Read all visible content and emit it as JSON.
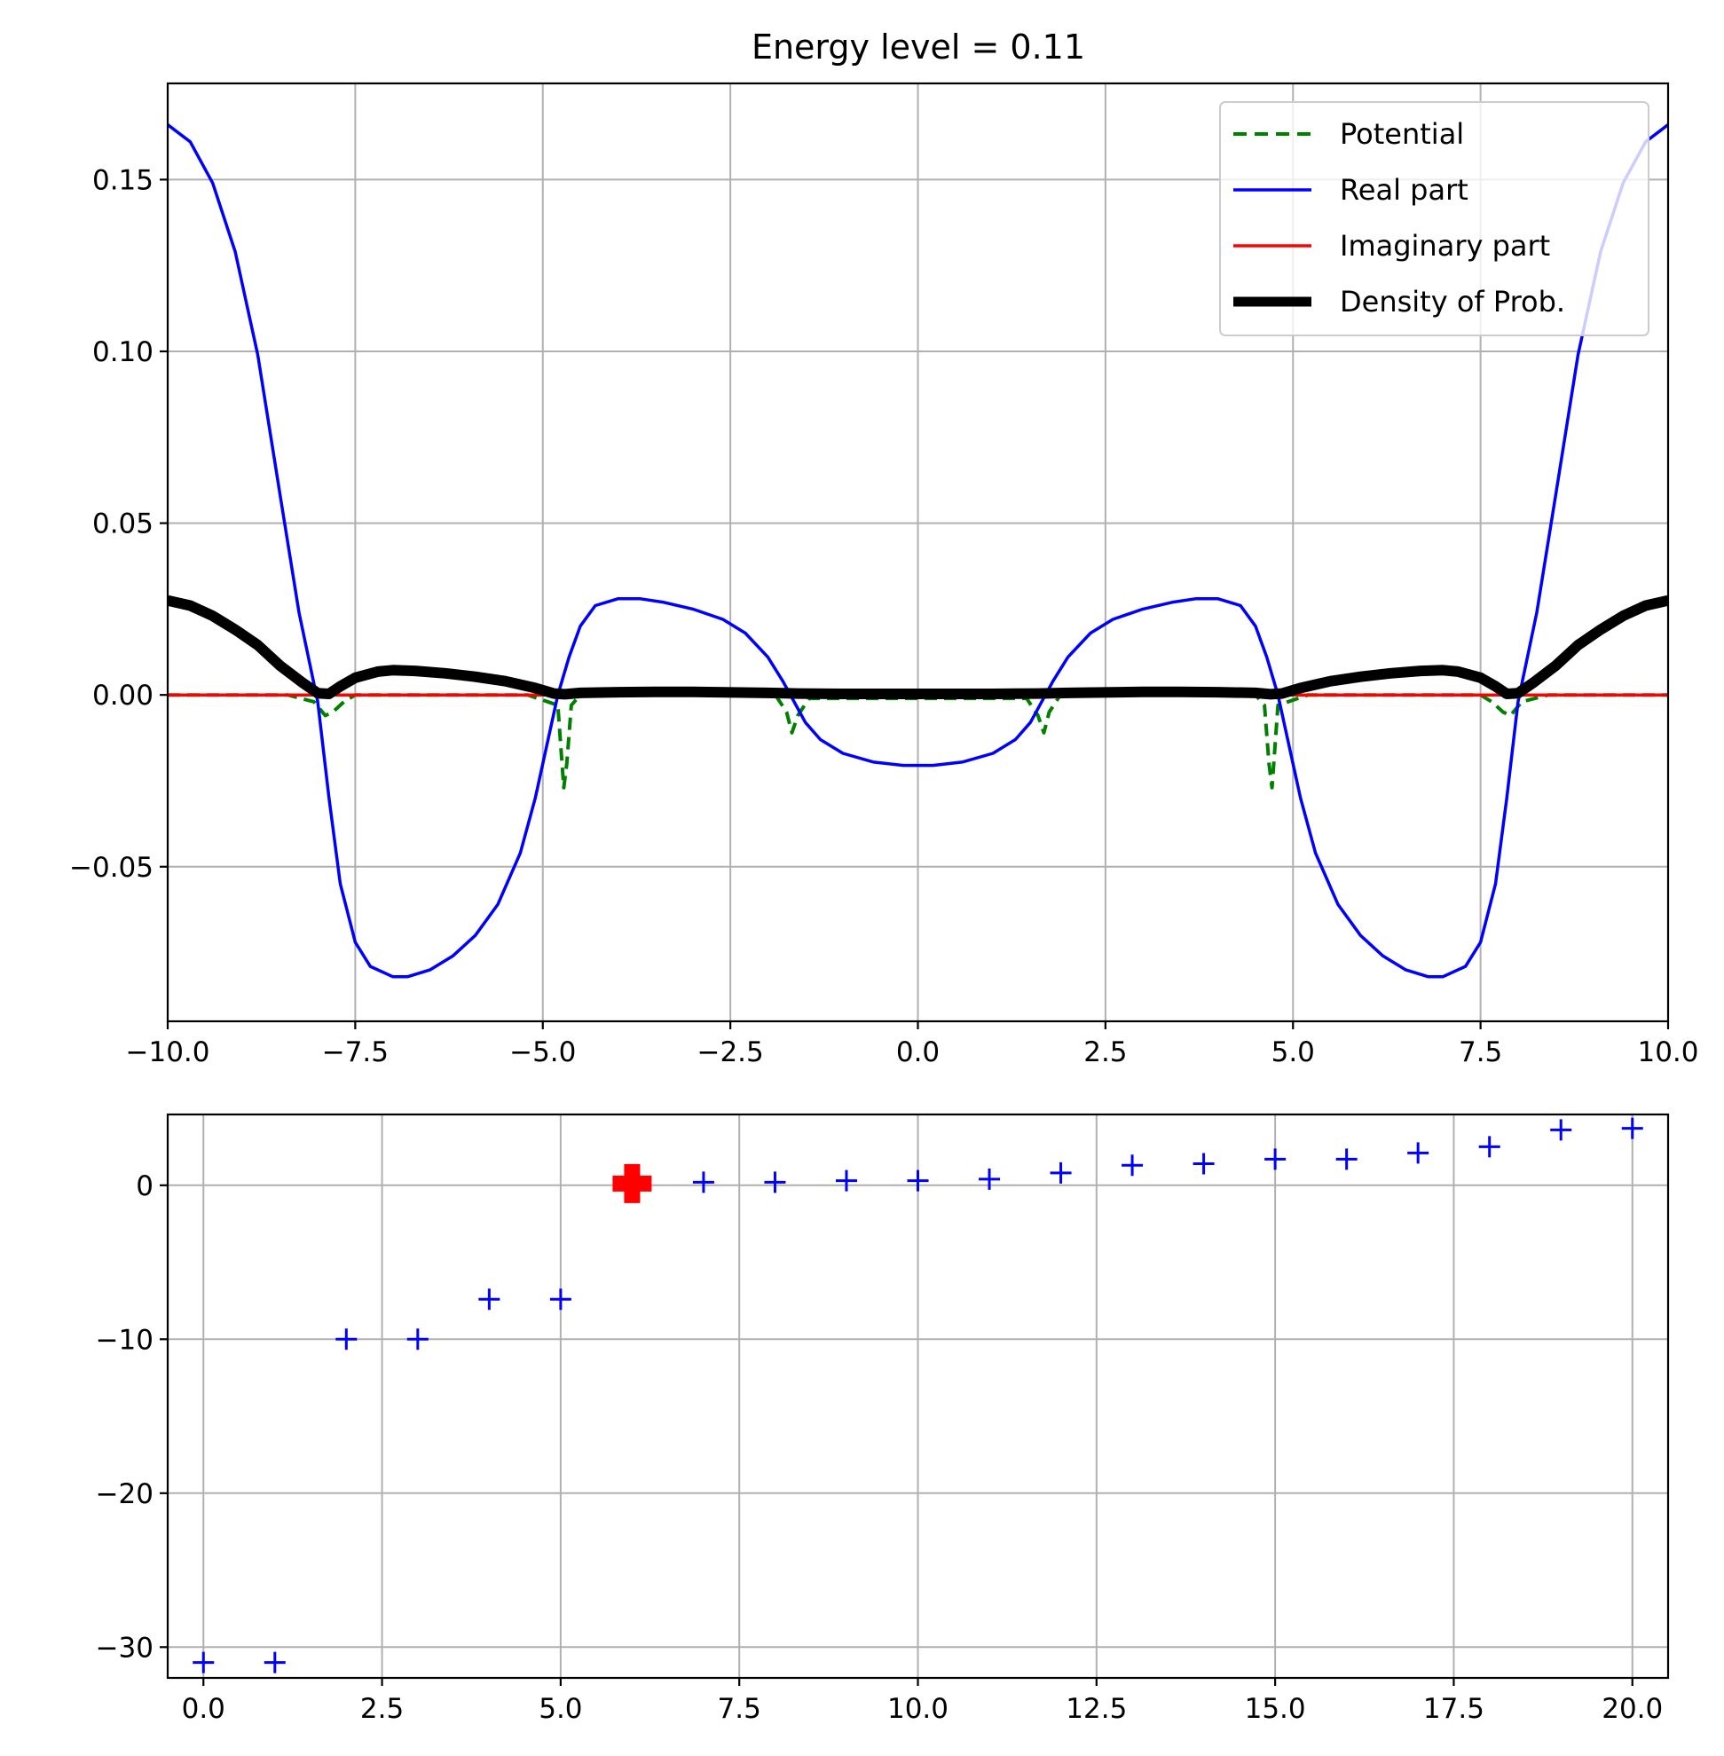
{
  "chart_data": [
    {
      "type": "line",
      "title": "Energy level = 0.11",
      "xlabel": "",
      "ylabel": "",
      "xlim": [
        -10,
        10
      ],
      "ylim": [
        -0.095,
        0.178
      ],
      "x_ticks": [
        "−10.0",
        "−7.5",
        "−5.0",
        "−2.5",
        "0.0",
        "2.5",
        "5.0",
        "7.5",
        "10.0"
      ],
      "y_ticks": [
        "−0.05",
        "0.00",
        "0.05",
        "0.10",
        "0.15"
      ],
      "grid": true,
      "legend_position": "top-right",
      "series": [
        {
          "name": "Potential",
          "color": "#008000",
          "style": "dashed",
          "x": [
            -10,
            -8.4,
            -8.05,
            -7.9,
            -7.8,
            -7.65,
            -7.5,
            -5.2,
            -4.8,
            -4.72,
            -4.68,
            -4.62,
            -4.5,
            -1.9,
            -1.75,
            -1.68,
            -1.6,
            -1.45,
            1.45,
            1.6,
            1.68,
            1.75,
            1.9,
            4.5,
            4.62,
            4.68,
            4.72,
            4.8,
            5.2,
            7.5,
            7.65,
            7.8,
            7.9,
            8.05,
            8.4,
            10
          ],
          "y": [
            0,
            0,
            -0.002,
            -0.006,
            -0.005,
            -0.002,
            0,
            0,
            -0.003,
            -0.027,
            -0.02,
            -0.003,
            0,
            0,
            -0.005,
            -0.011,
            -0.006,
            -0.001,
            -0.001,
            -0.006,
            -0.011,
            -0.005,
            0,
            0,
            -0.003,
            -0.02,
            -0.027,
            -0.003,
            0,
            0,
            -0.002,
            -0.005,
            -0.006,
            -0.002,
            0,
            0
          ]
        },
        {
          "name": "Real part",
          "color": "#0000ff",
          "style": "solid",
          "x": [
            -10,
            -9.7,
            -9.4,
            -9.1,
            -8.8,
            -8.5,
            -8.25,
            -8.0,
            -7.85,
            -7.7,
            -7.5,
            -7.3,
            -7.0,
            -6.8,
            -6.5,
            -6.2,
            -5.9,
            -5.6,
            -5.3,
            -5.1,
            -4.95,
            -4.8,
            -4.65,
            -4.5,
            -4.3,
            -4.0,
            -3.7,
            -3.4,
            -3.0,
            -2.6,
            -2.3,
            -2.0,
            -1.8,
            -1.65,
            -1.5,
            -1.3,
            -1.0,
            -0.6,
            -0.2,
            0.2,
            0.6,
            1.0,
            1.3,
            1.5,
            1.65,
            1.8,
            2.0,
            2.3,
            2.6,
            3.0,
            3.4,
            3.7,
            4.0,
            4.3,
            4.5,
            4.65,
            4.8,
            4.95,
            5.1,
            5.3,
            5.6,
            5.9,
            6.2,
            6.5,
            6.8,
            7.0,
            7.3,
            7.5,
            7.7,
            7.85,
            8.0,
            8.25,
            8.5,
            8.8,
            9.1,
            9.4,
            9.7,
            10
          ],
          "y": [
            0.166,
            0.161,
            0.149,
            0.129,
            0.099,
            0.058,
            0.024,
            -0.002,
            -0.03,
            -0.055,
            -0.072,
            -0.079,
            -0.082,
            -0.082,
            -0.08,
            -0.076,
            -0.07,
            -0.061,
            -0.046,
            -0.03,
            -0.015,
            0.0,
            0.011,
            0.02,
            0.026,
            0.028,
            0.028,
            0.027,
            0.025,
            0.022,
            0.018,
            0.011,
            0.004,
            -0.002,
            -0.008,
            -0.013,
            -0.017,
            -0.0195,
            -0.0205,
            -0.0205,
            -0.0195,
            -0.017,
            -0.013,
            -0.008,
            -0.002,
            0.004,
            0.011,
            0.018,
            0.022,
            0.025,
            0.027,
            0.028,
            0.028,
            0.026,
            0.02,
            0.011,
            0.0,
            -0.015,
            -0.03,
            -0.046,
            -0.061,
            -0.07,
            -0.076,
            -0.08,
            -0.082,
            -0.082,
            -0.079,
            -0.072,
            -0.055,
            -0.03,
            -0.002,
            0.024,
            0.058,
            0.099,
            0.129,
            0.149,
            0.161,
            0.166
          ]
        },
        {
          "name": "Imaginary part",
          "color": "#ff0000",
          "style": "solid",
          "x": [
            -10,
            10
          ],
          "y": [
            0,
            0
          ]
        },
        {
          "name": "Density of Prob.",
          "color": "#000000",
          "style": "solid",
          "x": [
            -10,
            -9.7,
            -9.4,
            -9.1,
            -8.8,
            -8.5,
            -8.2,
            -8.0,
            -7.85,
            -7.7,
            -7.5,
            -7.2,
            -7.0,
            -6.7,
            -6.3,
            -5.9,
            -5.5,
            -5.1,
            -4.85,
            -4.7,
            -4.5,
            -4.0,
            -3.5,
            -3.0,
            -2.0,
            -1.6,
            -1.0,
            0,
            1.0,
            1.6,
            2.0,
            3.0,
            3.5,
            4.0,
            4.5,
            4.7,
            4.85,
            5.1,
            5.5,
            5.9,
            6.3,
            6.7,
            7.0,
            7.2,
            7.5,
            7.7,
            7.85,
            8.0,
            8.2,
            8.5,
            8.8,
            9.1,
            9.4,
            9.7,
            10
          ],
          "y": [
            0.0275,
            0.026,
            0.023,
            0.019,
            0.0145,
            0.0085,
            0.0035,
            0.0005,
            0.0003,
            0.0025,
            0.005,
            0.0068,
            0.0072,
            0.007,
            0.0063,
            0.0053,
            0.004,
            0.002,
            0.0004,
            0.0002,
            0.0006,
            0.0008,
            0.0009,
            0.0009,
            0.0006,
            0.0004,
            0.0003,
            0.0003,
            0.0003,
            0.0004,
            0.0006,
            0.0009,
            0.0009,
            0.0008,
            0.0006,
            0.0002,
            0.0004,
            0.002,
            0.004,
            0.0053,
            0.0063,
            0.007,
            0.0072,
            0.0068,
            0.005,
            0.0025,
            0.0003,
            0.0005,
            0.0035,
            0.0085,
            0.0145,
            0.019,
            0.023,
            0.026,
            0.0275
          ]
        }
      ]
    },
    {
      "type": "scatter",
      "title": "",
      "xlabel": "",
      "ylabel": "",
      "xlim": [
        -0.5,
        20.5
      ],
      "ylim": [
        -32,
        4.6
      ],
      "x_ticks": [
        "0.0",
        "2.5",
        "5.0",
        "7.5",
        "10.0",
        "12.5",
        "15.0",
        "17.5",
        "20.0"
      ],
      "y_ticks": [
        "−30",
        "−20",
        "−10",
        "0"
      ],
      "grid": true,
      "series": [
        {
          "marker": "plus",
          "color": "#0000ff",
          "x": [
            0,
            1,
            2,
            3,
            4,
            5,
            7,
            8,
            9,
            10,
            11,
            12,
            13,
            14,
            15,
            16,
            17,
            18,
            19,
            20
          ],
          "y": [
            -31,
            -31,
            -10,
            -10,
            -7.4,
            -7.4,
            0.2,
            0.2,
            0.3,
            0.3,
            0.4,
            0.8,
            1.3,
            1.4,
            1.7,
            1.7,
            2.1,
            2.5,
            3.6,
            3.7
          ]
        },
        {
          "marker": "plus-large",
          "color": "#ff0000",
          "x": [
            6
          ],
          "y": [
            0.11
          ]
        }
      ]
    }
  ]
}
